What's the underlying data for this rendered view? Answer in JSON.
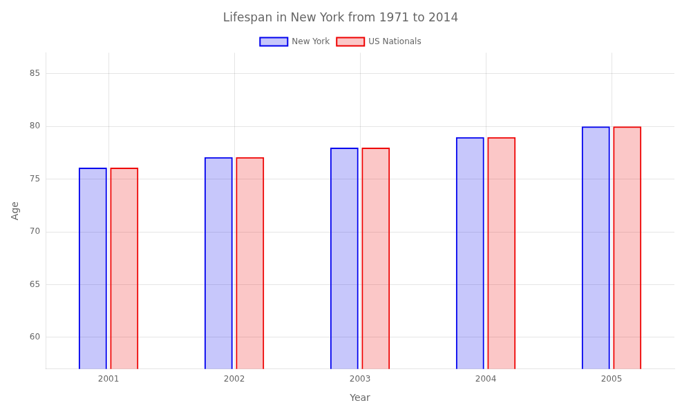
{
  "chart_data": {
    "type": "bar",
    "title": "Lifespan in New York from 1971 to 2014",
    "x_label": "Year",
    "y_label": "Age",
    "categories": [
      "2001",
      "2002",
      "2003",
      "2004",
      "2005"
    ],
    "series": [
      {
        "name": "New York",
        "color": "#0000ee",
        "values": [
          76.1,
          77.1,
          78.0,
          79.0,
          80.0
        ]
      },
      {
        "name": "US Nationals",
        "color": "#ee0000",
        "values": [
          76.1,
          77.1,
          78.0,
          79.0,
          80.0
        ]
      }
    ],
    "ylim": [
      57,
      87
    ],
    "yticks": [
      60,
      65,
      70,
      75,
      80,
      85
    ],
    "grid": true,
    "legend": "top"
  }
}
